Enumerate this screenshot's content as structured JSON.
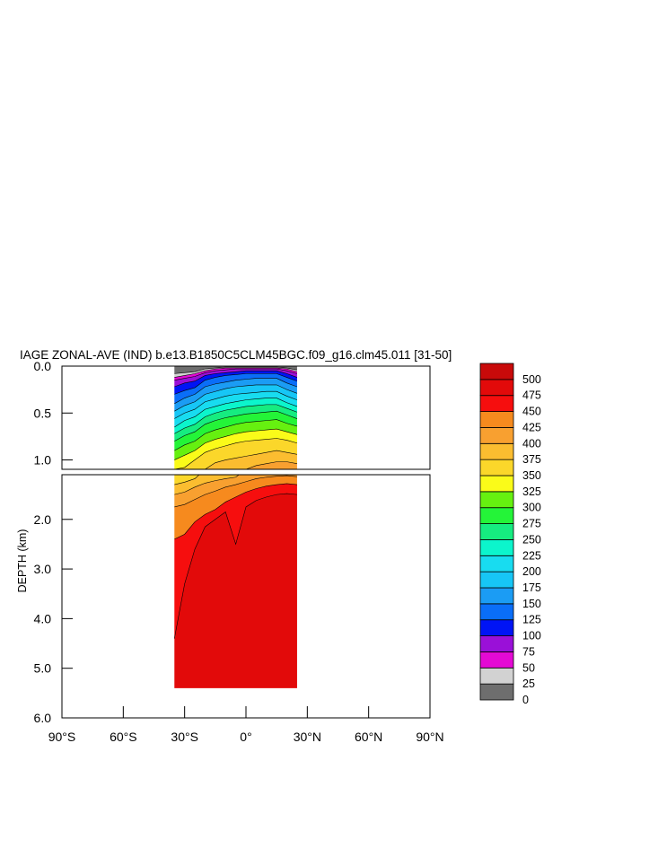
{
  "chart_data": {
    "type": "heatmap",
    "title": "IAGE ZONAL-AVE (IND) b.e13.B1850C5CLM45BGC.f09_g16.clm45.011 [31-50]",
    "ylabel": "DEPTH (km)",
    "xlabel": "",
    "x_ticks": [
      "90°S",
      "60°S",
      "30°S",
      "0°",
      "30°N",
      "60°N",
      "90°N"
    ],
    "x_tick_values": [
      -90,
      -60,
      -30,
      0,
      30,
      60,
      90
    ],
    "xlim": [
      -90,
      90
    ],
    "upper_panel": {
      "ylim": [
        0.0,
        1.1
      ],
      "y_ticks": [
        "0.0",
        "0.5",
        "1.0"
      ],
      "y_tick_values": [
        0.0,
        0.5,
        1.0
      ]
    },
    "lower_panel": {
      "ylim": [
        1.1,
        6.0
      ],
      "y_ticks": [
        "2.0",
        "3.0",
        "4.0",
        "5.0",
        "6.0"
      ],
      "y_tick_values": [
        2.0,
        3.0,
        4.0,
        5.0,
        6.0
      ]
    },
    "colorbar": {
      "levels": [
        "0",
        "25",
        "50",
        "75",
        "100",
        "125",
        "150",
        "175",
        "200",
        "225",
        "250",
        "275",
        "300",
        "325",
        "350",
        "375",
        "400",
        "425",
        "450",
        "475",
        "500"
      ],
      "colors": [
        "#6e6e6e",
        "#d2d2d2",
        "#e40ad4",
        "#9a10d8",
        "#0014f5",
        "#0a6ef8",
        "#1b9cf4",
        "#17c6f6",
        "#18dcf0",
        "#0cf5cc",
        "#16ec80",
        "#24f438",
        "#66f010",
        "#fafb19",
        "#fbd72a",
        "#fbbd30",
        "#f8a030",
        "#f68a1e",
        "#f60e0e",
        "#e20a0a",
        "#c80a0a"
      ]
    },
    "data_extent": {
      "lat_min": -35,
      "lat_max": 25,
      "max_depth_km": 5.4
    },
    "profiles": [
      {
        "lat": -35,
        "ml": [
          0.08,
          0.12,
          0.15,
          0.22,
          0.3,
          0.4,
          0.48,
          0.56,
          0.65,
          0.72,
          0.8,
          0.9,
          1.0,
          1.1,
          1.3,
          1.5,
          1.75,
          2.4,
          4.4
        ],
        "bottom": 5.4
      },
      {
        "lat": -30,
        "ml": [
          0.07,
          0.1,
          0.13,
          0.18,
          0.26,
          0.34,
          0.42,
          0.5,
          0.58,
          0.66,
          0.74,
          0.84,
          0.95,
          1.08,
          1.25,
          1.45,
          1.7,
          2.3,
          3.3
        ],
        "bottom": 5.4
      },
      {
        "lat": -25,
        "ml": [
          0.06,
          0.08,
          0.11,
          0.16,
          0.23,
          0.3,
          0.38,
          0.46,
          0.54,
          0.62,
          0.7,
          0.8,
          0.9,
          1.0,
          1.18,
          1.35,
          1.6,
          2.05,
          2.6
        ],
        "bottom": 5.4
      },
      {
        "lat": -20,
        "ml": [
          0.03,
          0.05,
          0.07,
          0.1,
          0.15,
          0.22,
          0.3,
          0.38,
          0.46,
          0.54,
          0.62,
          0.72,
          0.82,
          0.92,
          1.1,
          1.27,
          1.5,
          1.9,
          2.15
        ],
        "bottom": 5.4
      },
      {
        "lat": -15,
        "ml": [
          0.02,
          0.03,
          0.05,
          0.08,
          0.12,
          0.19,
          0.27,
          0.35,
          0.43,
          0.5,
          0.58,
          0.68,
          0.78,
          0.88,
          1.03,
          1.22,
          1.43,
          1.8,
          2.0
        ],
        "bottom": 5.4
      },
      {
        "lat": -10,
        "ml": [
          0.01,
          0.02,
          0.04,
          0.07,
          0.1,
          0.17,
          0.24,
          0.32,
          0.4,
          0.47,
          0.55,
          0.65,
          0.75,
          0.85,
          1.0,
          1.18,
          1.35,
          1.65,
          1.85
        ],
        "bottom": 5.4
      },
      {
        "lat": -5,
        "ml": [
          0.01,
          0.02,
          0.03,
          0.06,
          0.09,
          0.15,
          0.22,
          0.3,
          0.38,
          0.45,
          0.53,
          0.62,
          0.72,
          0.82,
          0.98,
          1.15,
          1.3,
          1.55,
          2.5
        ],
        "bottom": 5.4
      },
      {
        "lat": 0,
        "ml": [
          0.01,
          0.02,
          0.03,
          0.05,
          0.08,
          0.14,
          0.21,
          0.29,
          0.36,
          0.43,
          0.51,
          0.6,
          0.7,
          0.8,
          0.96,
          1.1,
          1.24,
          1.45,
          1.75
        ],
        "bottom": 5.4
      },
      {
        "lat": 5,
        "ml": [
          0.01,
          0.02,
          0.03,
          0.05,
          0.08,
          0.13,
          0.2,
          0.28,
          0.35,
          0.42,
          0.5,
          0.59,
          0.69,
          0.79,
          0.94,
          1.06,
          1.18,
          1.38,
          1.62
        ],
        "bottom": 5.4
      },
      {
        "lat": 10,
        "ml": [
          0.01,
          0.02,
          0.03,
          0.05,
          0.08,
          0.13,
          0.2,
          0.27,
          0.34,
          0.41,
          0.49,
          0.58,
          0.68,
          0.78,
          0.92,
          1.04,
          1.15,
          1.33,
          1.55
        ],
        "bottom": 5.4
      },
      {
        "lat": 15,
        "ml": [
          0.01,
          0.02,
          0.03,
          0.05,
          0.08,
          0.13,
          0.2,
          0.27,
          0.34,
          0.41,
          0.48,
          0.57,
          0.67,
          0.77,
          0.9,
          1.02,
          1.13,
          1.3,
          1.5
        ],
        "bottom": 5.4
      },
      {
        "lat": 20,
        "ml": [
          0.02,
          0.03,
          0.05,
          0.08,
          0.12,
          0.18,
          0.25,
          0.32,
          0.39,
          0.45,
          0.52,
          0.61,
          0.7,
          0.79,
          0.92,
          1.02,
          1.12,
          1.28,
          1.48
        ],
        "bottom": 5.4
      },
      {
        "lat": 25,
        "ml": [
          0.04,
          0.06,
          0.08,
          0.12,
          0.16,
          0.22,
          0.29,
          0.36,
          0.43,
          0.49,
          0.56,
          0.64,
          0.73,
          0.82,
          0.94,
          1.04,
          1.14,
          1.3,
          1.5
        ],
        "bottom": 5.4
      }
    ]
  }
}
